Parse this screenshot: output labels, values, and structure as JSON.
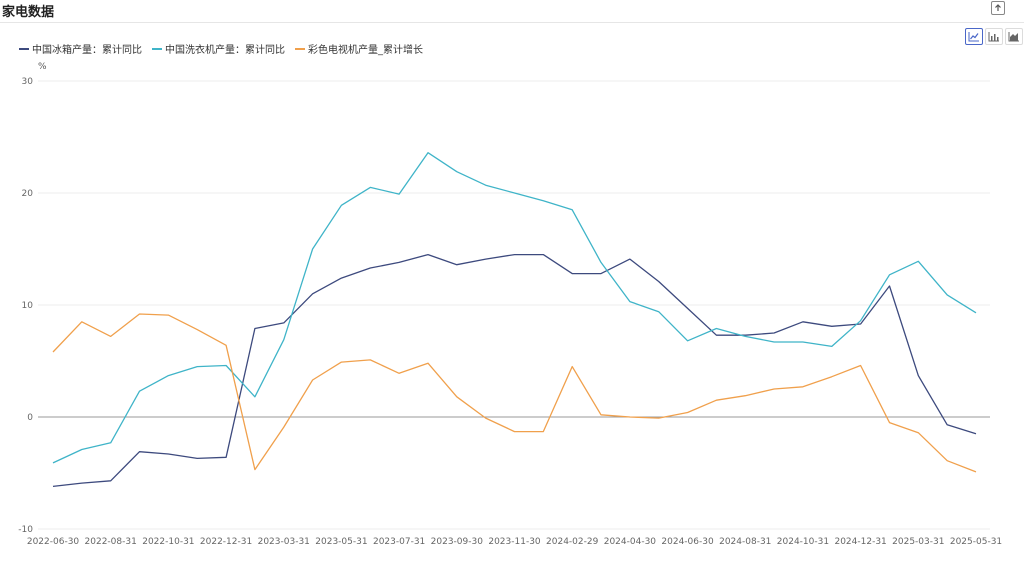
{
  "page": {
    "title": "家电数据"
  },
  "toolbar": {
    "export_icon": "export-icon",
    "chart_types": [
      {
        "name": "line-chart-icon",
        "active": true
      },
      {
        "name": "bar-chart-icon",
        "active": false
      },
      {
        "name": "area-chart-icon",
        "active": false
      }
    ]
  },
  "chart_data": {
    "type": "line",
    "unit": "%",
    "ylim": [
      -10,
      30
    ],
    "yticks": [
      "30",
      "20",
      "10",
      "0",
      "-10"
    ],
    "grid": true,
    "legend_position": "top-left",
    "x": [
      "2022-06-30",
      "2022-07-31",
      "2022-08-31",
      "2022-09-30",
      "2022-10-31",
      "2022-11-30",
      "2022-12-31",
      "2023-02-28",
      "2023-03-31",
      "2023-04-30",
      "2023-05-31",
      "2023-06-30",
      "2023-07-31",
      "2023-08-31",
      "2023-09-30",
      "2023-10-31",
      "2023-11-30",
      "2023-12-31",
      "2024-02-29",
      "2024-03-31",
      "2024-04-30",
      "2024-05-31",
      "2024-06-30",
      "2024-07-31",
      "2024-08-31",
      "2024-09-30",
      "2024-10-31",
      "2024-11-30",
      "2024-12-31",
      "2025-02-28",
      "2025-03-31",
      "2025-04-30",
      "2025-05-31"
    ],
    "xticks": [
      "2022-06-30",
      "2022-08-31",
      "2022-10-31",
      "2022-12-31",
      "2023-03-31",
      "2023-05-31",
      "2023-07-31",
      "2023-09-30",
      "2023-11-30",
      "2024-02-29",
      "2024-04-30",
      "2024-06-30",
      "2024-08-31",
      "2024-10-31",
      "2024-12-31",
      "2025-03-31",
      "2025-05-31"
    ],
    "series": [
      {
        "name": "中国冰箱产量：累计同比",
        "color": "#3d4a7e",
        "values": [
          -6.2,
          -5.9,
          -5.7,
          -3.1,
          -3.3,
          -3.7,
          -3.6,
          7.9,
          8.4,
          11.0,
          12.4,
          13.3,
          13.8,
          14.5,
          13.6,
          14.1,
          14.5,
          14.5,
          12.8,
          12.8,
          14.1,
          12.1,
          9.7,
          7.3,
          7.3,
          7.5,
          8.5,
          8.1,
          8.3,
          11.7,
          3.7,
          -0.7,
          -1.5
        ]
      },
      {
        "name": "中国洗衣机产量：累计同比",
        "color": "#3fb4c8",
        "values": [
          -4.1,
          -2.9,
          -2.3,
          2.3,
          3.7,
          4.5,
          4.6,
          1.8,
          6.9,
          15.0,
          18.9,
          20.5,
          19.9,
          23.6,
          21.9,
          20.7,
          20.0,
          19.3,
          18.5,
          13.8,
          10.3,
          9.4,
          6.8,
          7.9,
          7.2,
          6.7,
          6.7,
          6.3,
          8.6,
          12.7,
          13.9,
          10.9,
          9.3
        ]
      },
      {
        "name": "彩色电视机产量_累计增长",
        "color": "#f0a04c",
        "values": [
          5.8,
          8.5,
          7.2,
          9.2,
          9.1,
          7.8,
          6.4,
          -4.7,
          -0.9,
          3.3,
          4.9,
          5.1,
          3.9,
          4.8,
          1.8,
          -0.1,
          -1.3,
          -1.3,
          4.5,
          0.2,
          0.0,
          -0.1,
          0.4,
          1.5,
          1.9,
          2.5,
          2.7,
          3.6,
          4.6,
          -0.5,
          -1.4,
          -3.9,
          -4.9
        ]
      }
    ]
  }
}
